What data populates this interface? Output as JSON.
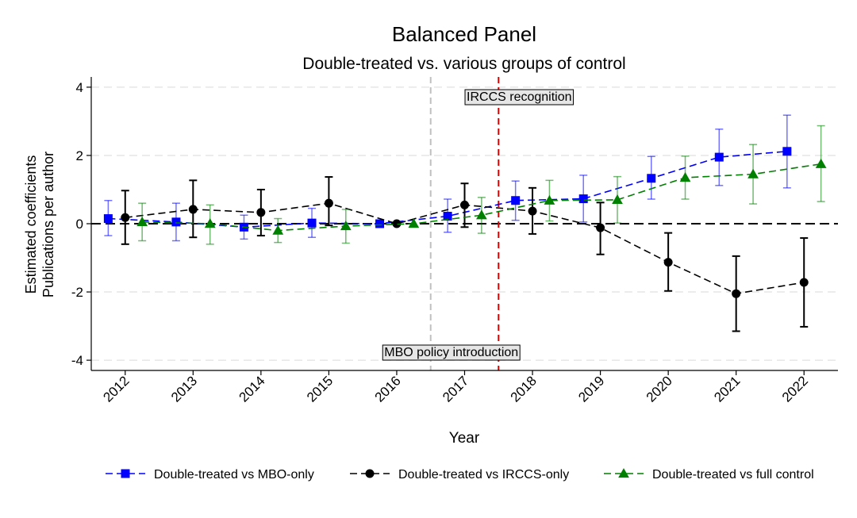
{
  "chart_data": {
    "type": "line",
    "title": "Balanced Panel",
    "subtitle": "Double-treated vs. various groups of control",
    "xlabel": "Year",
    "ylabel_line1": "Estimated coefficients",
    "ylabel_line2": "Publications per author",
    "xlim": [
      2011.5,
      2022.5
    ],
    "ylim": [
      -4.3,
      4.3
    ],
    "x_ticks": [
      2012,
      2013,
      2014,
      2015,
      2016,
      2017,
      2018,
      2019,
      2020,
      2021,
      2022
    ],
    "x_tick_labels": [
      "2012",
      "2013",
      "2014",
      "2015",
      "2016",
      "2017",
      "2018",
      "2019",
      "2020",
      "2021",
      "2022"
    ],
    "y_ticks": [
      -4,
      -2,
      0,
      2,
      4
    ],
    "y_tick_labels": [
      "-4",
      "-2",
      "0",
      "2",
      "4"
    ],
    "grid": true,
    "legend_position": "bottom",
    "reference_lines": [
      {
        "label": "MBO policy introduction",
        "x": 2016.5,
        "color": "#c0c0c0",
        "label_position": "bottom"
      },
      {
        "label": "IRCCS recognition",
        "x": 2017.5,
        "color": "#e00000",
        "label_position": "top"
      }
    ],
    "series": [
      {
        "name": "Double-treated vs MBO-only",
        "color": "#0000ff",
        "marker": "square",
        "offset": -0.25,
        "values": [
          0.15,
          0.05,
          -0.1,
          0.02,
          0.0,
          0.22,
          0.68,
          0.73,
          1.33,
          1.95,
          2.12
        ],
        "ci_low": [
          -0.35,
          -0.5,
          -0.45,
          -0.4,
          0.0,
          -0.25,
          0.1,
          0.05,
          0.72,
          1.12,
          1.05
        ],
        "ci_high": [
          0.68,
          0.6,
          0.25,
          0.45,
          0.0,
          0.72,
          1.25,
          1.42,
          1.97,
          2.77,
          3.18
        ]
      },
      {
        "name": "Double-treated vs IRCCS-only",
        "color": "#000000",
        "marker": "circle",
        "offset": 0.0,
        "values": [
          0.18,
          0.42,
          0.33,
          0.6,
          0.0,
          0.55,
          0.37,
          -0.12,
          -1.13,
          -2.05,
          -1.72
        ],
        "ci_low": [
          -0.6,
          -0.4,
          -0.35,
          -0.05,
          0.0,
          -0.1,
          -0.3,
          -0.9,
          -1.97,
          -3.15,
          -3.02
        ],
        "ci_high": [
          0.97,
          1.27,
          1.0,
          1.37,
          0.0,
          1.18,
          1.05,
          0.62,
          -0.27,
          -0.95,
          -0.42
        ]
      },
      {
        "name": "Double-treated vs full control",
        "color": "#008000",
        "marker": "triangle",
        "offset": 0.25,
        "values": [
          0.05,
          0.0,
          -0.2,
          -0.07,
          0.0,
          0.25,
          0.68,
          0.7,
          1.35,
          1.45,
          1.75
        ],
        "ci_low": [
          -0.5,
          -0.6,
          -0.55,
          -0.57,
          0.0,
          -0.28,
          0.08,
          0.02,
          0.72,
          0.58,
          0.65
        ],
        "ci_high": [
          0.6,
          0.55,
          0.15,
          0.42,
          0.0,
          0.77,
          1.27,
          1.38,
          1.98,
          2.32,
          2.87
        ]
      }
    ]
  }
}
